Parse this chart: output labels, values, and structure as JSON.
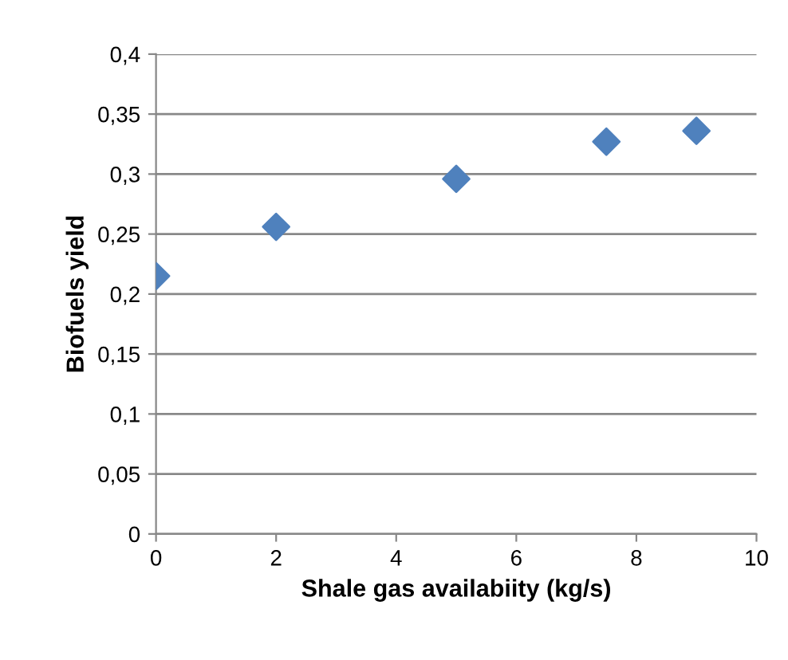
{
  "chart_data": {
    "type": "scatter",
    "xlabel": "Shale gas availabiity (kg/s)",
    "ylabel": "Biofuels yield",
    "x": [
      0,
      2,
      5,
      7.5,
      9
    ],
    "series": [
      {
        "color": "#4f81bd",
        "values": [
          0.215,
          0.256,
          0.296,
          0.327,
          0.336
        ]
      }
    ],
    "xlim": [
      0,
      10
    ],
    "xticks": [
      0,
      2,
      4,
      6,
      8,
      10
    ],
    "ylim": [
      0,
      0.4
    ],
    "yticks": [
      {
        "value": 0,
        "label": "0"
      },
      {
        "value": 0.05,
        "label": "0,05"
      },
      {
        "value": 0.1,
        "label": "0,1"
      },
      {
        "value": 0.15,
        "label": "0,15"
      },
      {
        "value": 0.2,
        "label": "0,2"
      },
      {
        "value": 0.25,
        "label": "0,25"
      },
      {
        "value": 0.3,
        "label": "0,3"
      },
      {
        "value": 0.35,
        "label": "0,35"
      },
      {
        "value": 0.4,
        "label": "0,4"
      }
    ],
    "grid": "y",
    "marker": "diamond"
  }
}
